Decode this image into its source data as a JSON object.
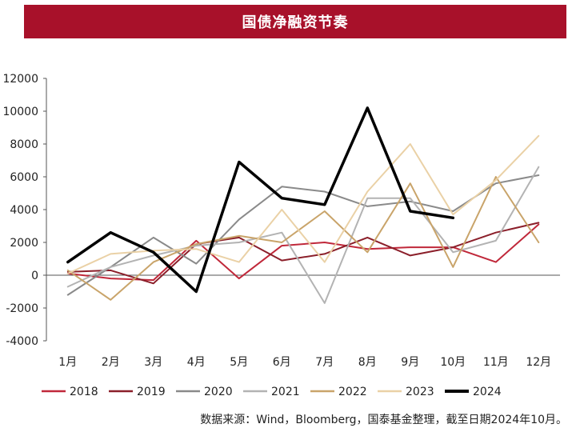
{
  "header": {
    "title": "国债净融资节奏"
  },
  "source_note": "数据来源：Wind，Bloomberg，国泰基金整理，截至日期2024年10月。",
  "chart_data": {
    "type": "line",
    "title": "国债净融资节奏",
    "xlabel": "",
    "ylabel": "",
    "categories": [
      "1月",
      "2月",
      "3月",
      "4月",
      "5月",
      "6月",
      "7月",
      "8月",
      "9月",
      "10月",
      "11月",
      "12月"
    ],
    "ylim": [
      -4000,
      12000
    ],
    "yticks": [
      -4000,
      -2000,
      0,
      2000,
      4000,
      6000,
      8000,
      10000,
      12000
    ],
    "grid": false,
    "legend": "bottom",
    "series": [
      {
        "name": "2018",
        "color": "#c0283a",
        "width": 2,
        "values": [
          100,
          -200,
          -300,
          2100,
          -200,
          1800,
          2000,
          1600,
          1700,
          1700,
          800,
          3100
        ]
      },
      {
        "name": "2019",
        "color": "#8b1f2a",
        "width": 2,
        "values": [
          200,
          300,
          -500,
          1900,
          2300,
          900,
          1300,
          2300,
          1200,
          1700,
          2600,
          3200
        ]
      },
      {
        "name": "2020",
        "color": "#8a8a8a",
        "width": 2,
        "values": [
          -1200,
          500,
          2300,
          700,
          3400,
          5400,
          5100,
          4200,
          4500,
          3900,
          5600,
          6100
        ]
      },
      {
        "name": "2021",
        "color": "#b3b3b3",
        "width": 2,
        "values": [
          -700,
          500,
          1200,
          1800,
          2000,
          2600,
          -1700,
          4700,
          4700,
          1400,
          2100,
          6600
        ]
      },
      {
        "name": "2022",
        "color": "#c9a46a",
        "width": 2,
        "values": [
          300,
          -1500,
          800,
          1900,
          2400,
          2000,
          3900,
          1400,
          5600,
          500,
          6000,
          2000
        ]
      },
      {
        "name": "2023",
        "color": "#ead1a6",
        "width": 2,
        "values": [
          100,
          1300,
          1500,
          1600,
          800,
          4000,
          800,
          5100,
          8000,
          3700,
          5800,
          8500
        ]
      },
      {
        "name": "2024",
        "color": "#000000",
        "width": 3.5,
        "values": [
          800,
          2600,
          1400,
          -1000,
          6900,
          4700,
          4300,
          10200,
          3900,
          3500,
          null,
          null
        ]
      }
    ]
  }
}
